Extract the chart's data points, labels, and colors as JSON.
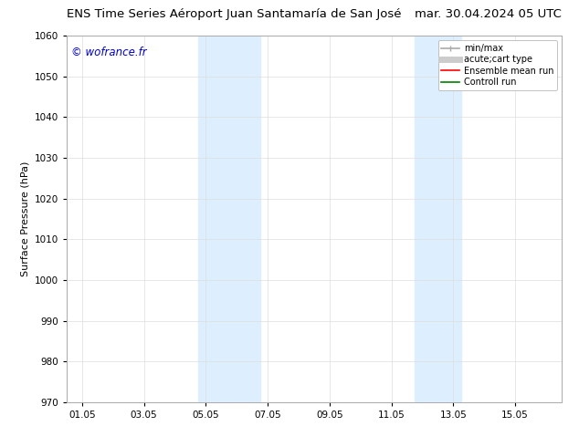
{
  "title_left": "ENS Time Series Aéroport Juan Santamaría de San José",
  "title_right": "mar. 30.04.2024 05 UTC",
  "ylabel": "Surface Pressure (hPa)",
  "watermark": "© wofrance.fr",
  "watermark_color": "#0000cc",
  "ylim": [
    970,
    1060
  ],
  "yticks": [
    970,
    980,
    990,
    1000,
    1010,
    1020,
    1030,
    1040,
    1050,
    1060
  ],
  "xtick_labels": [
    "01.05",
    "03.05",
    "05.05",
    "07.05",
    "09.05",
    "11.05",
    "13.05",
    "15.05"
  ],
  "xtick_positions": [
    0,
    2,
    4,
    6,
    8,
    10,
    12,
    14
  ],
  "xmin": -0.5,
  "xmax": 15.5,
  "background_color": "#ffffff",
  "shaded_regions": [
    {
      "xmin": 3.75,
      "xmax": 5.75,
      "color": "#ddeeff"
    },
    {
      "xmin": 10.75,
      "xmax": 12.25,
      "color": "#ddeeff"
    }
  ],
  "legend_entries": [
    {
      "label": "min/max",
      "color": "#aaaaaa",
      "lw": 1.2
    },
    {
      "label": "acute;cart type",
      "color": "#cccccc",
      "lw": 5
    },
    {
      "label": "Ensemble mean run",
      "color": "#ff0000",
      "lw": 1.2
    },
    {
      "label": "Controll run",
      "color": "#008000",
      "lw": 1.2
    }
  ],
  "grid_color": "#dddddd",
  "grid_alpha": 1.0,
  "title_fontsize": 9.5,
  "ylabel_fontsize": 8,
  "tick_fontsize": 7.5,
  "watermark_fontsize": 8.5,
  "legend_fontsize": 7
}
